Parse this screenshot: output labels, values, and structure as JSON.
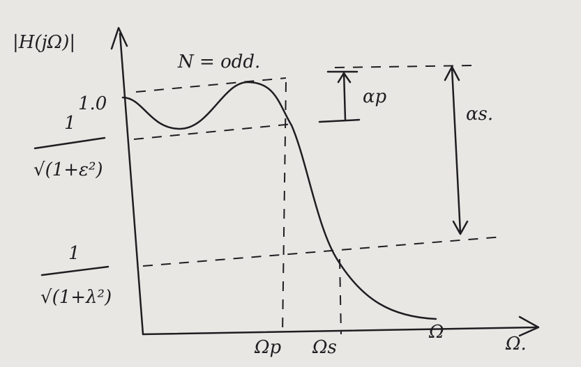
{
  "axes": {
    "y_label": "|H(jΩ)|",
    "x_label": "Ω."
  },
  "annotation": "N = odd.",
  "levels": [
    {
      "label": "1.0"
    },
    {
      "numerator": "1",
      "denominator": "√(1+ε²)"
    },
    {
      "numerator": "1",
      "denominator": "√(1+λ²)"
    }
  ],
  "x_marks": [
    "Ωp",
    "Ωs",
    "Ω"
  ],
  "attenuation": {
    "passband": "αp",
    "stopband": "αs."
  }
}
